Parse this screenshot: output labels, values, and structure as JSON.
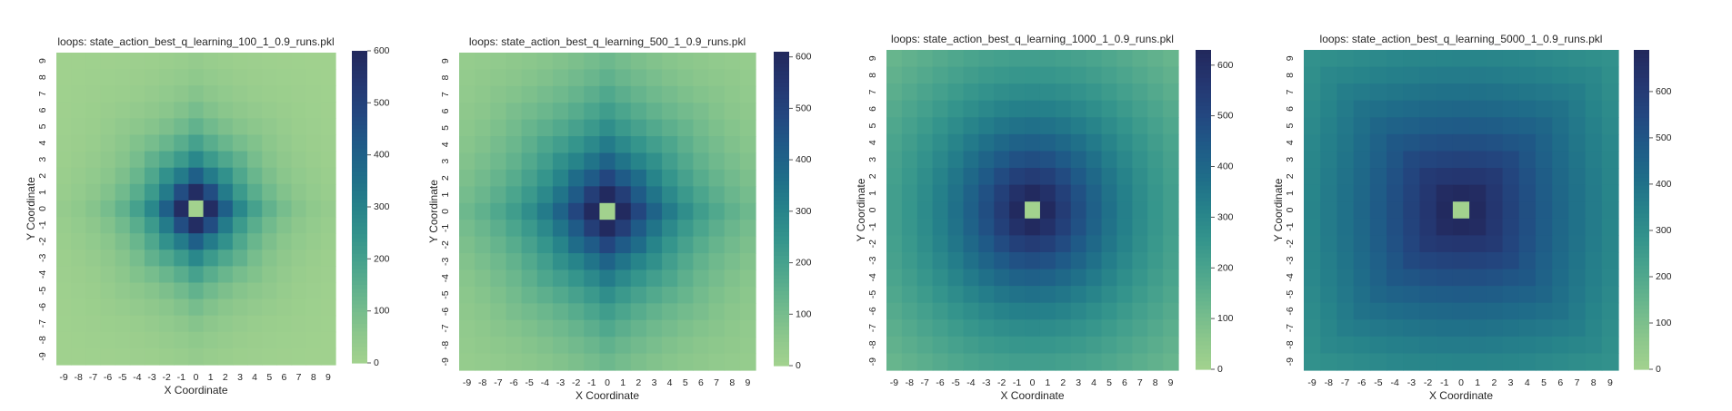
{
  "chart_data": [
    {
      "type": "heatmap",
      "title": "loops: state_action_best_q_learning_100_1_0.9_runs.pkl",
      "xlabel": "X Coordinate",
      "ylabel": "Y Coordinate",
      "x_ticks": [
        "-9",
        "-8",
        "-7",
        "-6",
        "-5",
        "-4",
        "-3",
        "-2",
        "-1",
        "0",
        "1",
        "2",
        "3",
        "4",
        "5",
        "6",
        "7",
        "8",
        "9"
      ],
      "y_ticks": [
        "9",
        "8",
        "7",
        "6",
        "5",
        "4",
        "3",
        "2",
        "1",
        "0",
        "-1",
        "-2",
        "-3",
        "-4",
        "-5",
        "-6",
        "-7",
        "-8",
        "-9"
      ],
      "colorbar_ticks": [
        0,
        100,
        200,
        300,
        400,
        500,
        600
      ],
      "vmin": 0,
      "vmax": 600,
      "peak": 580,
      "center_value": 0,
      "falloff": {
        "a": 0.36,
        "b": 1.0,
        "p": 0.72,
        "shape": "diamond"
      }
    },
    {
      "type": "heatmap",
      "title": "loops: state_action_best_q_learning_500_1_0.9_runs.pkl",
      "xlabel": "X Coordinate",
      "ylabel": "Y Coordinate",
      "x_ticks": [
        "-9",
        "-8",
        "-7",
        "-6",
        "-5",
        "-4",
        "-3",
        "-2",
        "-1",
        "0",
        "1",
        "2",
        "3",
        "4",
        "5",
        "6",
        "7",
        "8",
        "9"
      ],
      "y_ticks": [
        "9",
        "8",
        "7",
        "6",
        "5",
        "4",
        "3",
        "2",
        "1",
        "0",
        "-1",
        "-2",
        "-3",
        "-4",
        "-5",
        "-6",
        "-7",
        "-8",
        "-9"
      ],
      "colorbar_ticks": [
        0,
        100,
        200,
        300,
        400,
        500,
        600
      ],
      "vmin": 0,
      "vmax": 610,
      "peak": 600,
      "center_value": 0,
      "falloff": {
        "a": 0.24,
        "b": 0.85,
        "p": 0.75,
        "shape": "mixed"
      }
    },
    {
      "type": "heatmap",
      "title": "loops: state_action_best_q_learning_1000_1_0.9_runs.pkl",
      "xlabel": "X Coordinate",
      "ylabel": "Y Coordinate",
      "x_ticks": [
        "-9",
        "-8",
        "-7",
        "-6",
        "-5",
        "-4",
        "-3",
        "-2",
        "-1",
        "0",
        "1",
        "2",
        "3",
        "4",
        "5",
        "6",
        "7",
        "8",
        "9"
      ],
      "y_ticks": [
        "9",
        "8",
        "7",
        "6",
        "5",
        "4",
        "3",
        "2",
        "1",
        "0",
        "-1",
        "-2",
        "-3",
        "-4",
        "-5",
        "-6",
        "-7",
        "-8",
        "-9"
      ],
      "colorbar_ticks": [
        0,
        100,
        200,
        300,
        400,
        500,
        600
      ],
      "vmin": 0,
      "vmax": 630,
      "peak": 620,
      "center_value": 0,
      "falloff": {
        "a": 0.2,
        "b": 0.65,
        "p": 0.8,
        "shape": "round"
      }
    },
    {
      "type": "heatmap",
      "title": "loops: state_action_best_q_learning_5000_1_0.9_runs.pkl",
      "xlabel": "X Coordinate",
      "ylabel": "Y Coordinate",
      "x_ticks": [
        "-9",
        "-8",
        "-7",
        "-6",
        "-5",
        "-4",
        "-3",
        "-2",
        "-1",
        "0",
        "1",
        "2",
        "3",
        "4",
        "5",
        "6",
        "7",
        "8",
        "9"
      ],
      "y_ticks": [
        "9",
        "8",
        "7",
        "6",
        "5",
        "4",
        "3",
        "2",
        "1",
        "0",
        "-1",
        "-2",
        "-3",
        "-4",
        "-5",
        "-6",
        "-7",
        "-8",
        "-9"
      ],
      "colorbar_ticks": [
        0,
        100,
        200,
        300,
        400,
        500,
        600
      ],
      "vmin": 0,
      "vmax": 690,
      "peak": 680,
      "center_value": 0,
      "falloff": {
        "a": 0.16,
        "b": 0.55,
        "p": 0.85,
        "shape": "square"
      }
    }
  ],
  "colormap": [
    "#a2d28e",
    "#8ac68c",
    "#6bb78d",
    "#4da68d",
    "#35958c",
    "#26828a",
    "#1f6d89",
    "#1f5a87",
    "#23467f",
    "#243670",
    "#22285c"
  ]
}
